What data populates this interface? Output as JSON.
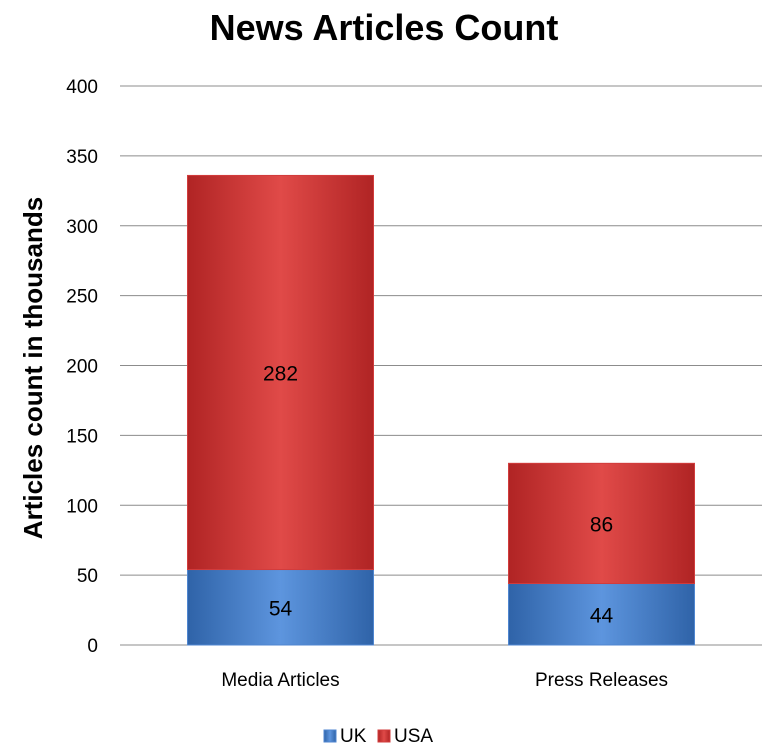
{
  "chart_data": {
    "type": "bar",
    "stacked": true,
    "title": "News Articles Count",
    "xlabel": "",
    "ylabel": "Articles count in thousands",
    "categories": [
      "Media Articles",
      "Press Releases"
    ],
    "series": [
      {
        "name": "UK",
        "values": [
          54,
          44
        ],
        "color": "#4f86d0"
      },
      {
        "name": "USA",
        "values": [
          282,
          86
        ],
        "color": "#d23c3c"
      }
    ],
    "ylim": [
      0,
      400
    ],
    "yticks": [
      0,
      50,
      100,
      150,
      200,
      250,
      300,
      350,
      400
    ],
    "grid": true,
    "legend": "bottom",
    "data_labels": true
  }
}
